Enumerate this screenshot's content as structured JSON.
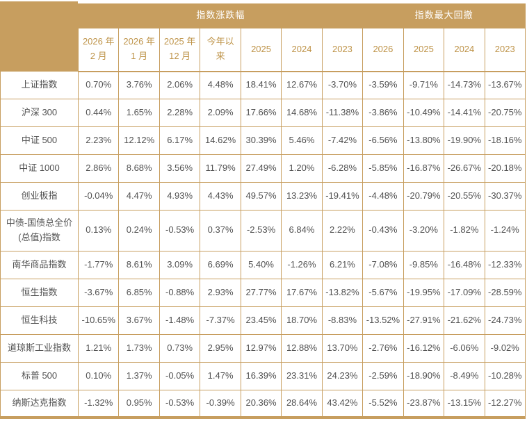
{
  "chart_data": {
    "type": "table",
    "title": "",
    "group_headers": [
      {
        "label": "指数涨跌幅",
        "colspan": 7
      },
      {
        "label": "指数最大回撤",
        "colspan": 4
      }
    ],
    "columns": [
      "2026 年 2 月",
      "2026 年 1 月",
      "2025 年 12 月",
      "今年以来",
      "2025",
      "2024",
      "2023",
      "2026",
      "2025",
      "2024",
      "2023"
    ],
    "rows": [
      {
        "label": "上证指数",
        "values": [
          "0.70%",
          "3.76%",
          "2.06%",
          "4.48%",
          "18.41%",
          "12.67%",
          "-3.70%",
          "-3.59%",
          "-9.71%",
          "-14.73%",
          "-13.67%"
        ]
      },
      {
        "label": "沪深 300",
        "values": [
          "0.44%",
          "1.65%",
          "2.28%",
          "2.09%",
          "17.66%",
          "14.68%",
          "-11.38%",
          "-3.86%",
          "-10.49%",
          "-14.41%",
          "-20.75%"
        ]
      },
      {
        "label": "中证 500",
        "values": [
          "2.23%",
          "12.12%",
          "6.17%",
          "14.62%",
          "30.39%",
          "5.46%",
          "-7.42%",
          "-6.56%",
          "-13.80%",
          "-19.90%",
          "-18.16%"
        ]
      },
      {
        "label": "中证 1000",
        "values": [
          "2.86%",
          "8.68%",
          "3.56%",
          "11.79%",
          "27.49%",
          "1.20%",
          "-6.28%",
          "-5.85%",
          "-16.87%",
          "-26.67%",
          "-20.18%"
        ]
      },
      {
        "label": "创业板指",
        "values": [
          "-0.04%",
          "4.47%",
          "4.93%",
          "4.43%",
          "49.57%",
          "13.23%",
          "-19.41%",
          "-4.48%",
          "-20.79%",
          "-20.55%",
          "-30.37%"
        ]
      },
      {
        "label": "中债-国债总全价(总值)指数",
        "values": [
          "0.13%",
          "0.24%",
          "-0.53%",
          "0.37%",
          "-2.53%",
          "6.84%",
          "2.22%",
          "-0.43%",
          "-3.20%",
          "-1.82%",
          "-1.24%"
        ]
      },
      {
        "label": "南华商品指数",
        "values": [
          "-1.77%",
          "8.61%",
          "3.09%",
          "6.69%",
          "5.40%",
          "-1.26%",
          "6.21%",
          "-7.08%",
          "-9.85%",
          "-16.48%",
          "-12.33%"
        ]
      },
      {
        "label": "恒生指数",
        "values": [
          "-3.67%",
          "6.85%",
          "-0.88%",
          "2.93%",
          "27.77%",
          "17.67%",
          "-13.82%",
          "-5.67%",
          "-19.95%",
          "-17.09%",
          "-28.59%"
        ]
      },
      {
        "label": "恒生科技",
        "values": [
          "-10.65%",
          "3.67%",
          "-1.48%",
          "-7.37%",
          "23.45%",
          "18.70%",
          "-8.83%",
          "-13.52%",
          "-27.91%",
          "-21.62%",
          "-24.73%"
        ]
      },
      {
        "label": "道琼斯工业指数",
        "values": [
          "1.21%",
          "1.73%",
          "0.73%",
          "2.95%",
          "12.97%",
          "12.88%",
          "13.70%",
          "-2.76%",
          "-16.12%",
          "-6.06%",
          "-9.02%"
        ]
      },
      {
        "label": "标普 500",
        "values": [
          "0.10%",
          "1.37%",
          "-0.05%",
          "1.47%",
          "16.39%",
          "23.31%",
          "24.23%",
          "-2.59%",
          "-18.90%",
          "-8.49%",
          "-10.28%"
        ]
      },
      {
        "label": "纳斯达克指数",
        "values": [
          "-1.32%",
          "0.95%",
          "-0.53%",
          "-0.39%",
          "20.36%",
          "28.64%",
          "43.42%",
          "-5.52%",
          "-23.87%",
          "-13.15%",
          "-12.27%"
        ]
      }
    ]
  },
  "colors": {
    "gold": "#C79E5F",
    "band_text": "#FFFFFF",
    "subheader_text": "#BE9348",
    "cell_text": "#515151",
    "background": "#FFFFFF"
  }
}
